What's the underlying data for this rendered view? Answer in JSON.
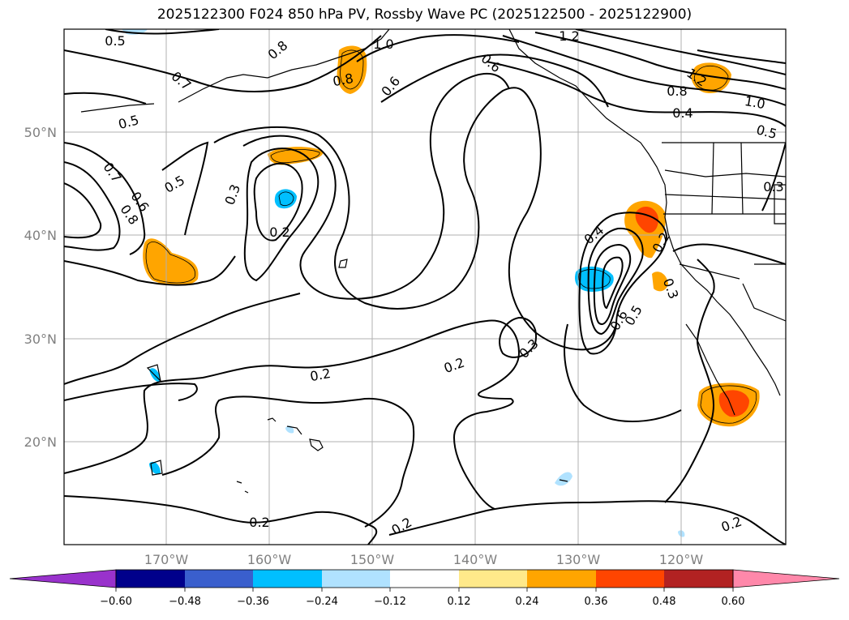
{
  "title": "2025122300 F024 850 hPa PV, Rossby Wave PC (2025122500 - 2025122900)",
  "axes": {
    "lat_labels": [
      "50°N",
      "40°N",
      "30°N",
      "20°N"
    ],
    "lon_labels": [
      "170°W",
      "160°W",
      "150°W",
      "140°W",
      "130°W",
      "120°W"
    ],
    "grid": true
  },
  "contour_labels": [
    {
      "text": "0.5"
    },
    {
      "text": "0.8"
    },
    {
      "text": "1.0"
    },
    {
      "text": "1.2"
    },
    {
      "text": "0.7"
    },
    {
      "text": "0.8"
    },
    {
      "text": "0.6"
    },
    {
      "text": "0.6"
    },
    {
      "text": "0.5"
    },
    {
      "text": "1.2"
    },
    {
      "text": "0.8"
    },
    {
      "text": "1.0"
    },
    {
      "text": "0.4"
    },
    {
      "text": "0.5"
    },
    {
      "text": "0.7"
    },
    {
      "text": "0.5"
    },
    {
      "text": "0.6"
    },
    {
      "text": "0.8"
    },
    {
      "text": "0.3"
    },
    {
      "text": "0.2"
    },
    {
      "text": "0.4"
    },
    {
      "text": "0.2"
    },
    {
      "text": "0.3"
    },
    {
      "text": "0.6"
    },
    {
      "text": "0.5"
    },
    {
      "text": "0.3"
    },
    {
      "text": "0.2"
    },
    {
      "text": "0.2"
    },
    {
      "text": "0.3"
    },
    {
      "text": "0.2"
    },
    {
      "text": "0.2"
    },
    {
      "text": "0.2"
    }
  ],
  "colorbar": {
    "ticks": [
      "−0.60",
      "−0.48",
      "−0.36",
      "−0.24",
      "−0.12",
      "0.12",
      "0.24",
      "0.36",
      "0.48",
      "0.60"
    ],
    "colors": [
      "#9932cc",
      "#00008b",
      "#3a5fcd",
      "#00bfff",
      "#b0e2ff",
      "#ffffff",
      "#ffe98a",
      "#ffa500",
      "#ff4500",
      "#b22222",
      "#ff88aa"
    ]
  }
}
